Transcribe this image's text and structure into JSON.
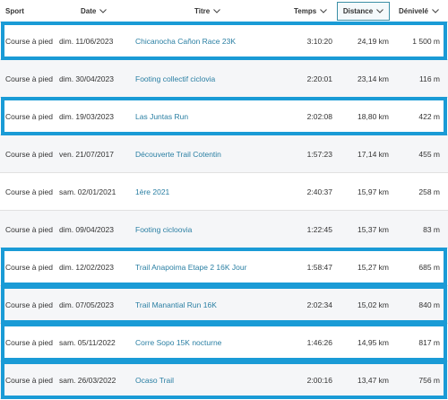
{
  "header": {
    "sport": "Sport",
    "date": "Date",
    "titre": "Titre",
    "temps": "Temps",
    "distance": "Distance",
    "denivele": "Dénivelé"
  },
  "rows": [
    {
      "sport": "Course à pied",
      "date": "dim. 11/06/2023",
      "title": "Chicanocha Cañon Race 23K",
      "time": "3:10:20",
      "distance": "24,19 km",
      "elevation": "1 500 m",
      "highlighted": true
    },
    {
      "sport": "Course à pied",
      "date": "dim. 30/04/2023",
      "title": "Footing collectif ciclovia",
      "time": "2:20:01",
      "distance": "23,14 km",
      "elevation": "116 m",
      "highlighted": false
    },
    {
      "sport": "Course à pied",
      "date": "dim. 19/03/2023",
      "title": "Las Juntas Run",
      "time": "2:02:08",
      "distance": "18,80 km",
      "elevation": "422 m",
      "highlighted": true
    },
    {
      "sport": "Course à pied",
      "date": "ven. 21/07/2017",
      "title": "Découverte Trail Cotentin",
      "time": "1:57:23",
      "distance": "17,14 km",
      "elevation": "455 m",
      "highlighted": false
    },
    {
      "sport": "Course à pied",
      "date": "sam. 02/01/2021",
      "title": "1ère 2021",
      "time": "2:40:37",
      "distance": "15,97 km",
      "elevation": "258 m",
      "highlighted": false
    },
    {
      "sport": "Course à pied",
      "date": "dim. 09/04/2023",
      "title": "Footing cicloovia",
      "time": "1:22:45",
      "distance": "15,37 km",
      "elevation": "83 m",
      "highlighted": false
    },
    {
      "sport": "Course à pied",
      "date": "dim. 12/02/2023",
      "title": "Trail Anapoima Etape 2 16K Jour",
      "time": "1:58:47",
      "distance": "15,27 km",
      "elevation": "685 m",
      "highlighted": true
    },
    {
      "sport": "Course à pied",
      "date": "dim. 07/05/2023",
      "title": "Trail Manantial Run 16K",
      "time": "2:02:34",
      "distance": "15,02 km",
      "elevation": "840 m",
      "highlighted": true
    },
    {
      "sport": "Course à pied",
      "date": "sam. 05/11/2022",
      "title": "Corre Sopo 15K nocturne",
      "time": "1:46:26",
      "distance": "14,95 km",
      "elevation": "817 m",
      "highlighted": true
    },
    {
      "sport": "Course à pied",
      "date": "sam. 26/03/2022",
      "title": "Ocaso Trail",
      "time": "2:00:16",
      "distance": "13,47 km",
      "elevation": "756 m",
      "highlighted": true
    }
  ],
  "colors": {
    "link": "#2a7fa3",
    "highlight_border": "#1a9bd6",
    "sorted_column_border": "#3b8fa6"
  },
  "icons": {
    "sort": "chevron-down-icon"
  }
}
